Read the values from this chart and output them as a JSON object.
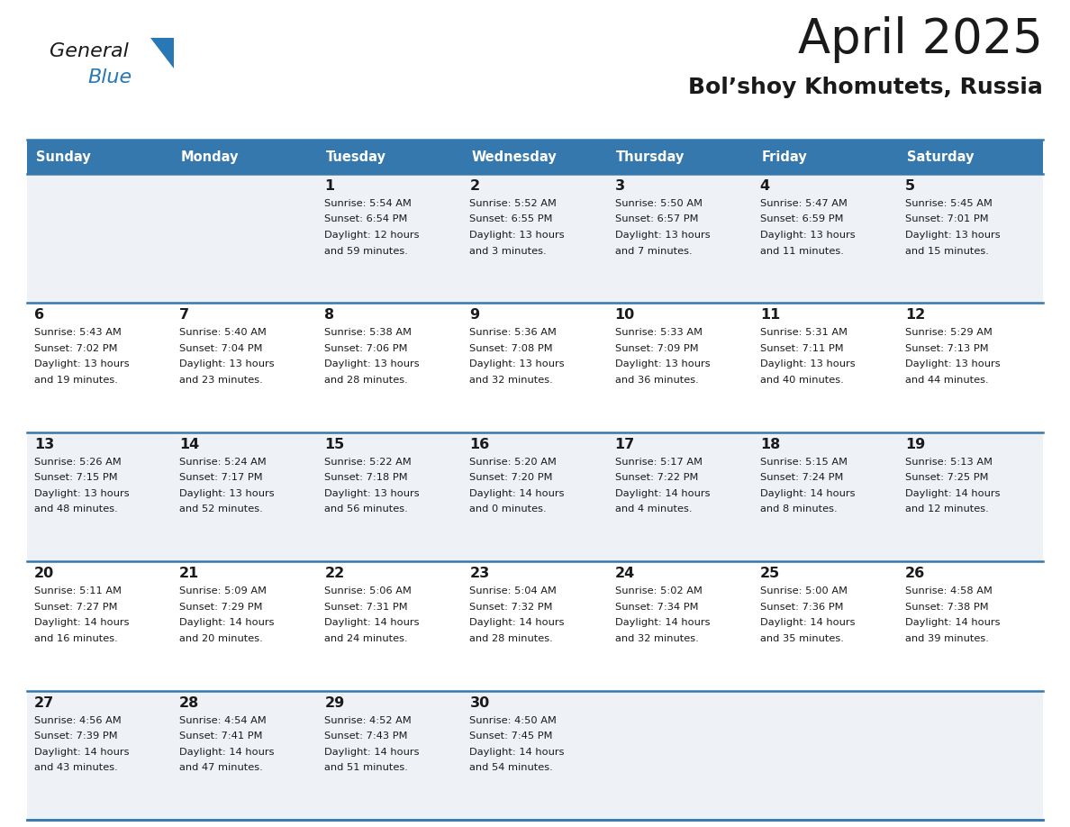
{
  "title": "April 2025",
  "subtitle": "Bol’shoy Khomutets, Russia",
  "header_bg": "#3578ae",
  "header_text": "#ffffff",
  "row_bg_odd": "#eef2f7",
  "row_bg_even": "#ffffff",
  "border_color": "#3578ae",
  "text_color": "#1a1a1a",
  "logo_general_color": "#1a1a1a",
  "logo_blue_color": "#2778b5",
  "logo_triangle_color": "#2778b5",
  "days_of_week": [
    "Sunday",
    "Monday",
    "Tuesday",
    "Wednesday",
    "Thursday",
    "Friday",
    "Saturday"
  ],
  "weeks": [
    [
      {
        "day": "",
        "info": ""
      },
      {
        "day": "",
        "info": ""
      },
      {
        "day": "1",
        "info": "Sunrise: 5:54 AM\nSunset: 6:54 PM\nDaylight: 12 hours\nand 59 minutes."
      },
      {
        "day": "2",
        "info": "Sunrise: 5:52 AM\nSunset: 6:55 PM\nDaylight: 13 hours\nand 3 minutes."
      },
      {
        "day": "3",
        "info": "Sunrise: 5:50 AM\nSunset: 6:57 PM\nDaylight: 13 hours\nand 7 minutes."
      },
      {
        "day": "4",
        "info": "Sunrise: 5:47 AM\nSunset: 6:59 PM\nDaylight: 13 hours\nand 11 minutes."
      },
      {
        "day": "5",
        "info": "Sunrise: 5:45 AM\nSunset: 7:01 PM\nDaylight: 13 hours\nand 15 minutes."
      }
    ],
    [
      {
        "day": "6",
        "info": "Sunrise: 5:43 AM\nSunset: 7:02 PM\nDaylight: 13 hours\nand 19 minutes."
      },
      {
        "day": "7",
        "info": "Sunrise: 5:40 AM\nSunset: 7:04 PM\nDaylight: 13 hours\nand 23 minutes."
      },
      {
        "day": "8",
        "info": "Sunrise: 5:38 AM\nSunset: 7:06 PM\nDaylight: 13 hours\nand 28 minutes."
      },
      {
        "day": "9",
        "info": "Sunrise: 5:36 AM\nSunset: 7:08 PM\nDaylight: 13 hours\nand 32 minutes."
      },
      {
        "day": "10",
        "info": "Sunrise: 5:33 AM\nSunset: 7:09 PM\nDaylight: 13 hours\nand 36 minutes."
      },
      {
        "day": "11",
        "info": "Sunrise: 5:31 AM\nSunset: 7:11 PM\nDaylight: 13 hours\nand 40 minutes."
      },
      {
        "day": "12",
        "info": "Sunrise: 5:29 AM\nSunset: 7:13 PM\nDaylight: 13 hours\nand 44 minutes."
      }
    ],
    [
      {
        "day": "13",
        "info": "Sunrise: 5:26 AM\nSunset: 7:15 PM\nDaylight: 13 hours\nand 48 minutes."
      },
      {
        "day": "14",
        "info": "Sunrise: 5:24 AM\nSunset: 7:17 PM\nDaylight: 13 hours\nand 52 minutes."
      },
      {
        "day": "15",
        "info": "Sunrise: 5:22 AM\nSunset: 7:18 PM\nDaylight: 13 hours\nand 56 minutes."
      },
      {
        "day": "16",
        "info": "Sunrise: 5:20 AM\nSunset: 7:20 PM\nDaylight: 14 hours\nand 0 minutes."
      },
      {
        "day": "17",
        "info": "Sunrise: 5:17 AM\nSunset: 7:22 PM\nDaylight: 14 hours\nand 4 minutes."
      },
      {
        "day": "18",
        "info": "Sunrise: 5:15 AM\nSunset: 7:24 PM\nDaylight: 14 hours\nand 8 minutes."
      },
      {
        "day": "19",
        "info": "Sunrise: 5:13 AM\nSunset: 7:25 PM\nDaylight: 14 hours\nand 12 minutes."
      }
    ],
    [
      {
        "day": "20",
        "info": "Sunrise: 5:11 AM\nSunset: 7:27 PM\nDaylight: 14 hours\nand 16 minutes."
      },
      {
        "day": "21",
        "info": "Sunrise: 5:09 AM\nSunset: 7:29 PM\nDaylight: 14 hours\nand 20 minutes."
      },
      {
        "day": "22",
        "info": "Sunrise: 5:06 AM\nSunset: 7:31 PM\nDaylight: 14 hours\nand 24 minutes."
      },
      {
        "day": "23",
        "info": "Sunrise: 5:04 AM\nSunset: 7:32 PM\nDaylight: 14 hours\nand 28 minutes."
      },
      {
        "day": "24",
        "info": "Sunrise: 5:02 AM\nSunset: 7:34 PM\nDaylight: 14 hours\nand 32 minutes."
      },
      {
        "day": "25",
        "info": "Sunrise: 5:00 AM\nSunset: 7:36 PM\nDaylight: 14 hours\nand 35 minutes."
      },
      {
        "day": "26",
        "info": "Sunrise: 4:58 AM\nSunset: 7:38 PM\nDaylight: 14 hours\nand 39 minutes."
      }
    ],
    [
      {
        "day": "27",
        "info": "Sunrise: 4:56 AM\nSunset: 7:39 PM\nDaylight: 14 hours\nand 43 minutes."
      },
      {
        "day": "28",
        "info": "Sunrise: 4:54 AM\nSunset: 7:41 PM\nDaylight: 14 hours\nand 47 minutes."
      },
      {
        "day": "29",
        "info": "Sunrise: 4:52 AM\nSunset: 7:43 PM\nDaylight: 14 hours\nand 51 minutes."
      },
      {
        "day": "30",
        "info": "Sunrise: 4:50 AM\nSunset: 7:45 PM\nDaylight: 14 hours\nand 54 minutes."
      },
      {
        "day": "",
        "info": ""
      },
      {
        "day": "",
        "info": ""
      },
      {
        "day": "",
        "info": ""
      }
    ]
  ]
}
